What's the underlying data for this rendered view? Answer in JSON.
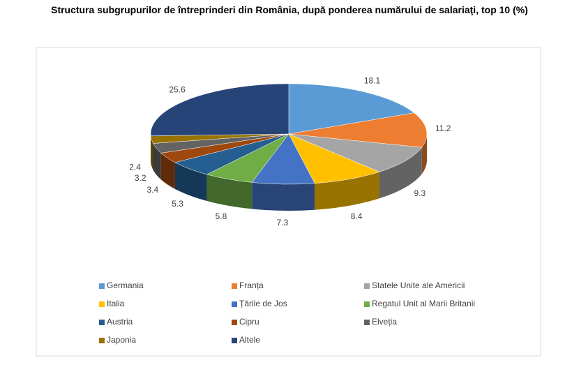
{
  "chart_data": {
    "type": "pie3d",
    "title": "Structura subgrupurilor de întreprinderi din România, după ponderea numărului de salariaţi, top 10 (%)",
    "categories": [
      "Germania",
      "Franța",
      "Statele Unite ale Americii",
      "Italia",
      "Țările de Jos",
      "Regatul Unit al Marii Britanii",
      "Austria",
      "Cipru",
      "Elveția",
      "Japonia",
      "Altele"
    ],
    "values": [
      18.1,
      11.2,
      9.3,
      8.4,
      7.3,
      5.8,
      5.3,
      3.4,
      3.2,
      2.4,
      25.6
    ],
    "colors": [
      "#5b9bd5",
      "#ed7d31",
      "#a5a5a5",
      "#ffc000",
      "#4472c4",
      "#70ad47",
      "#255e91",
      "#9e480e",
      "#636363",
      "#997300",
      "#264478"
    ]
  }
}
